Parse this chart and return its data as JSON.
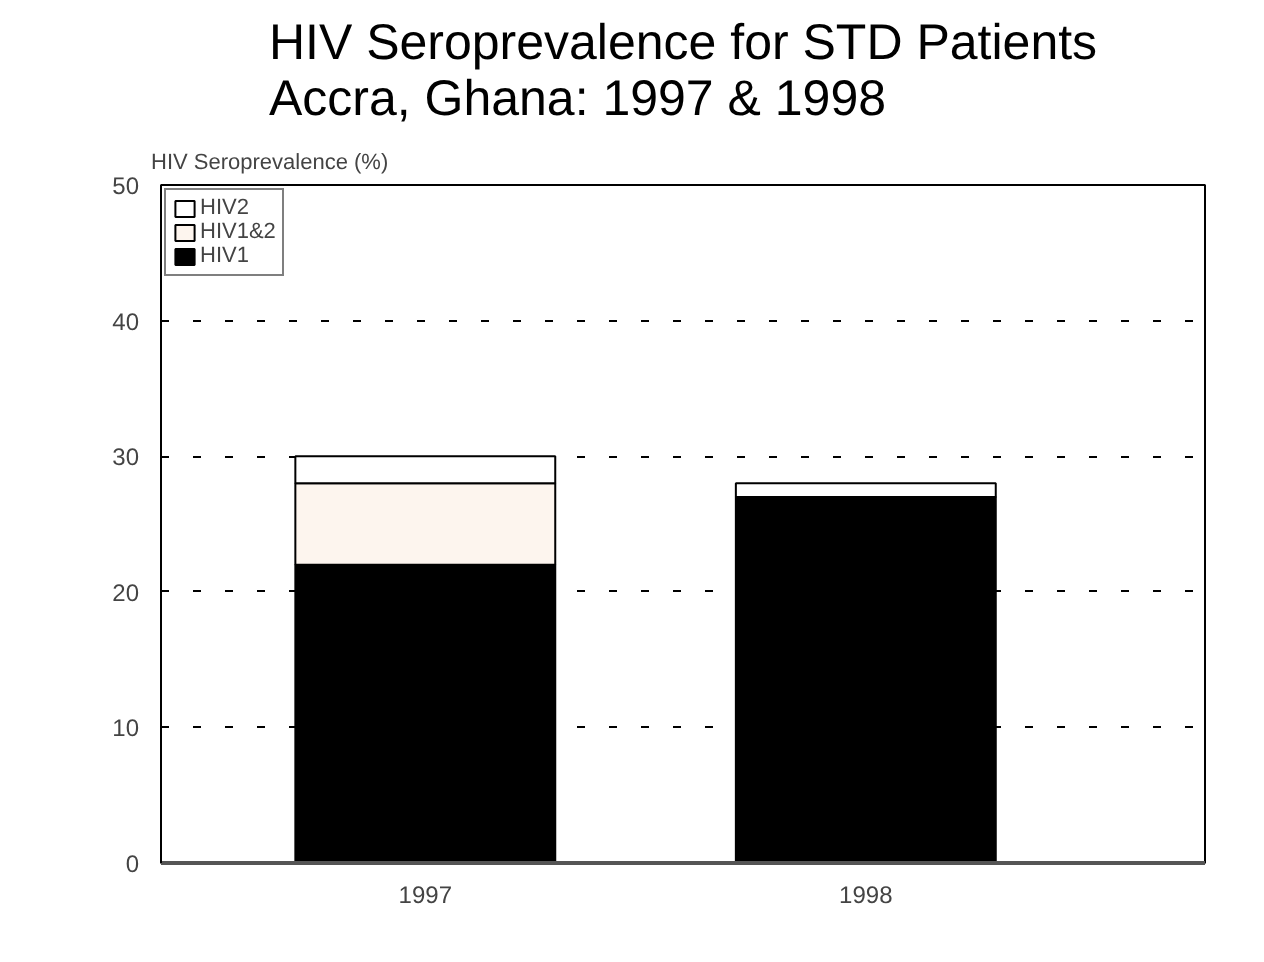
{
  "chart_data": {
    "type": "bar",
    "title": "HIV Seroprevalence for STD Patients\nAccra, Ghana:  1997 & 1998",
    "ylabel": "HIV Seroprevalence (%)",
    "categories": [
      "1997",
      "1998"
    ],
    "stacked": true,
    "series": [
      {
        "name": "HIV1",
        "color": "#000000",
        "values": [
          22,
          27
        ]
      },
      {
        "name": "HIV1&2",
        "color": "#fdf5ee",
        "values": [
          6,
          0
        ]
      },
      {
        "name": "HIV2",
        "color": "#ffffff",
        "values": [
          2,
          1
        ]
      }
    ],
    "ylim": [
      0,
      50
    ],
    "yticks": [
      0,
      10,
      20,
      30,
      40,
      50
    ],
    "grid": "y",
    "legend": "top left"
  }
}
